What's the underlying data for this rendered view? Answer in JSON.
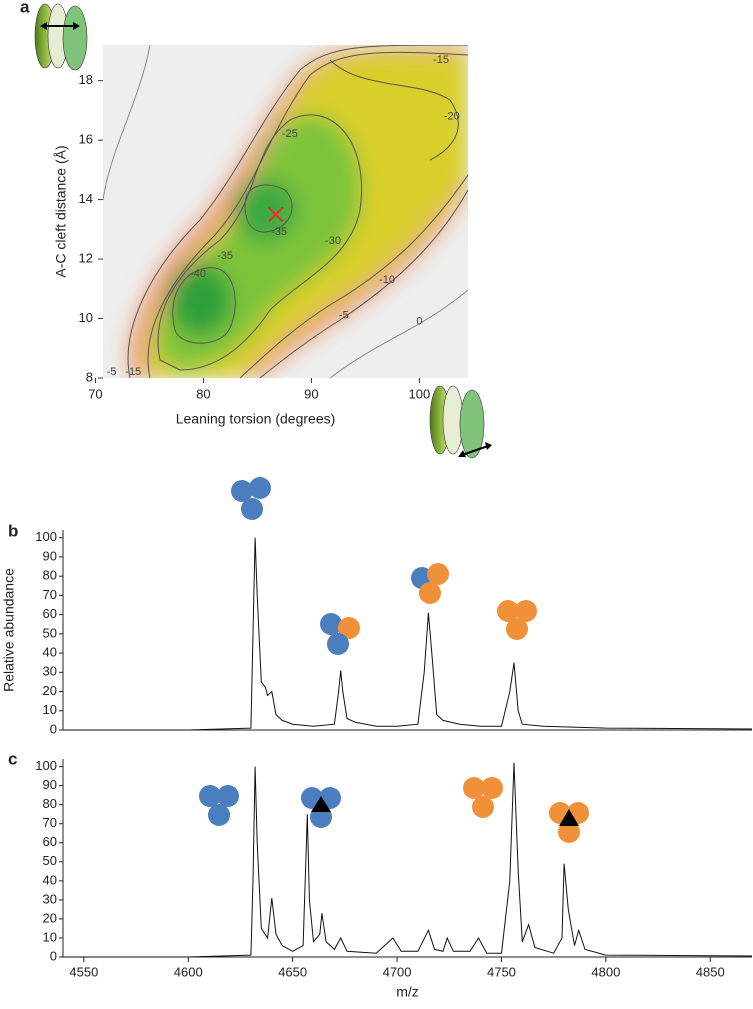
{
  "chart_data": [
    {
      "type": "contour",
      "panel_label": "a",
      "xlabel": "Leaning torsion (degrees)",
      "ylabel": "A-C cleft distance (Å)",
      "xlim": [
        70.7,
        104.5
      ],
      "ylim": [
        8,
        19.2
      ],
      "xticks": [
        70,
        80,
        90,
        100
      ],
      "yticks": [
        8,
        10,
        12,
        14,
        16,
        18
      ],
      "labels": [
        {
          "value": -15,
          "x": 102,
          "y": 18.7
        },
        {
          "value": -20,
          "x": 103,
          "y": 16.8
        },
        {
          "value": -25,
          "x": 88,
          "y": 16.2
        },
        {
          "value": -35,
          "x": 87,
          "y": 12.9
        },
        {
          "value": -30,
          "x": 92,
          "y": 12.6
        },
        {
          "value": -35,
          "x": 82,
          "y": 12.1
        },
        {
          "value": -40,
          "x": 79.5,
          "y": 11.5
        },
        {
          "value": -10,
          "x": 97,
          "y": 11.3
        },
        {
          "value": -5,
          "x": 93,
          "y": 10.1
        },
        {
          "value": 0,
          "x": 100,
          "y": 9.9
        },
        {
          "value": -5,
          "x": 71.5,
          "y": 8.2
        },
        {
          "value": -15,
          "x": 73.5,
          "y": 8.2
        }
      ],
      "minimum": {
        "x": 86.7,
        "y": 13.5,
        "color": "#e53020"
      }
    },
    {
      "type": "line",
      "panel_label": "b",
      "ylabel": "Relative abundance",
      "xlim": [
        4540,
        4870
      ],
      "ylim": [
        0,
        104
      ],
      "yticks": [
        0,
        10,
        20,
        30,
        40,
        50,
        60,
        70,
        80,
        90,
        100
      ],
      "color": "#111111",
      "x": [
        4540,
        4600,
        4630,
        4631,
        4632,
        4633,
        4635,
        4637,
        4638,
        4640,
        4642,
        4645,
        4650,
        4660,
        4670,
        4672,
        4673,
        4674,
        4676,
        4680,
        4690,
        4700,
        4710,
        4713,
        4715,
        4717,
        4719,
        4722,
        4730,
        4740,
        4750,
        4754,
        4756,
        4758,
        4760,
        4770,
        4800,
        4870
      ],
      "values": [
        0,
        0,
        1,
        50,
        100,
        70,
        25,
        22,
        18,
        20,
        8,
        5,
        3,
        2,
        3,
        20,
        31,
        20,
        6,
        4,
        2,
        2,
        3,
        30,
        61,
        35,
        8,
        5,
        3,
        2,
        2,
        20,
        35,
        10,
        3,
        2,
        1,
        0.5
      ]
    },
    {
      "type": "line",
      "panel_label": "c",
      "xlabel": "m/z",
      "xlim": [
        4540,
        4870
      ],
      "ylim": [
        0,
        104
      ],
      "xticks": [
        4550,
        4600,
        4650,
        4700,
        4750,
        4800,
        4850
      ],
      "yticks": [
        0,
        10,
        20,
        30,
        40,
        50,
        60,
        70,
        80,
        90,
        100
      ],
      "color": "#111111",
      "x": [
        4540,
        4600,
        4630,
        4631,
        4632,
        4633,
        4635,
        4638,
        4640,
        4642,
        4645,
        4650,
        4655,
        4656,
        4657,
        4658,
        4660,
        4663,
        4664,
        4666,
        4670,
        4673,
        4676,
        4690,
        4698,
        4702,
        4710,
        4715,
        4718,
        4722,
        4724,
        4727,
        4735,
        4739,
        4743,
        4750,
        4754,
        4756,
        4758,
        4760,
        4763,
        4766,
        4775,
        4779,
        4780,
        4782,
        4785,
        4787,
        4790,
        4800,
        4870
      ],
      "values": [
        0,
        0,
        1,
        40,
        100,
        60,
        15,
        10,
        31,
        12,
        6,
        3,
        6,
        40,
        75,
        30,
        8,
        12,
        23,
        8,
        4,
        10,
        3,
        2,
        10,
        3,
        3,
        14,
        4,
        3,
        10,
        3,
        3,
        10,
        2,
        2,
        40,
        102,
        45,
        8,
        17,
        5,
        2,
        10,
        49,
        25,
        6,
        14,
        4,
        1,
        0.5
      ]
    }
  ]
}
